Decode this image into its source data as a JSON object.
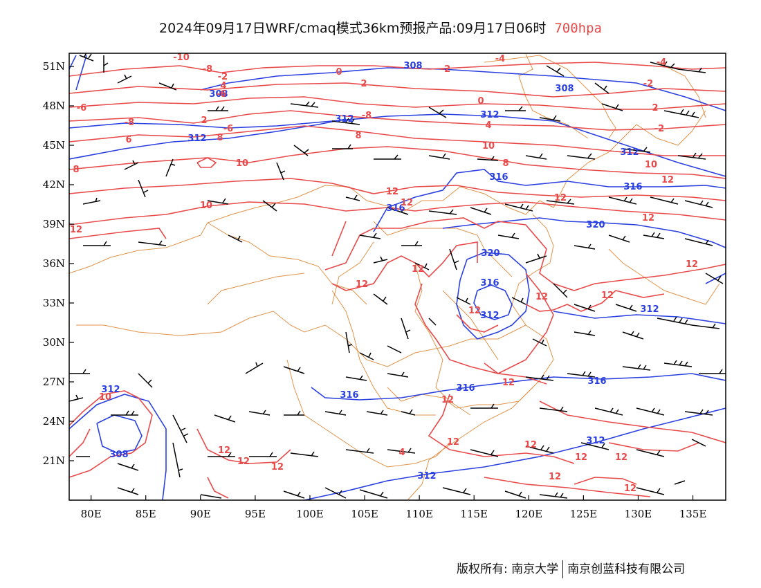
{
  "title": {
    "main": "2024年09月17日WRF/cmaq模式36km预报产品:09月17日06时",
    "level": "700hpa",
    "level_color": "#e84a4a"
  },
  "colors": {
    "height": "#2a3fe0",
    "temperature": "#e84a4a",
    "border": "#e0934a",
    "barb": "#000000"
  },
  "axes": {
    "lon_ticks": [
      "80E",
      "85E",
      "90E",
      "95E",
      "100E",
      "105E",
      "110E",
      "115E",
      "120E",
      "125E",
      "130E",
      "135E"
    ],
    "lat_ticks": [
      "21N",
      "24N",
      "27N",
      "30N",
      "33N",
      "36N",
      "39N",
      "42N",
      "45N",
      "48N",
      "51N"
    ],
    "lon_range": [
      78,
      138
    ],
    "lat_range": [
      18,
      52
    ]
  },
  "height_labels": [
    "308",
    "308",
    "308",
    "312",
    "312",
    "312",
    "312",
    "316",
    "316",
    "316",
    "320",
    "320",
    "316",
    "312",
    "312",
    "316",
    "316",
    "316",
    "312",
    "312",
    "308",
    "312",
    "312"
  ],
  "temp_labels": [
    "-10",
    "-8",
    "-2",
    "-4",
    "0",
    "-2",
    "2",
    "-4",
    "4",
    "-6",
    "-6",
    "0",
    "-2",
    "2",
    "-8",
    "2",
    "-6",
    "4",
    "6",
    "8",
    "-8",
    "-2",
    "-4",
    "10",
    "8",
    "8",
    "10",
    "8",
    "10",
    "12",
    "12",
    "12",
    "10",
    "12",
    "12",
    "12",
    "12",
    "12",
    "12",
    "12",
    "12",
    "12",
    "12",
    "12",
    "12",
    "12",
    "12",
    "12",
    "12",
    "10",
    "12",
    "12",
    "12",
    "12",
    "12",
    "12",
    "10",
    "4"
  ],
  "footer": {
    "left": "版权所有: 南京大学",
    "right": "南京创蓝科技有限公司"
  }
}
